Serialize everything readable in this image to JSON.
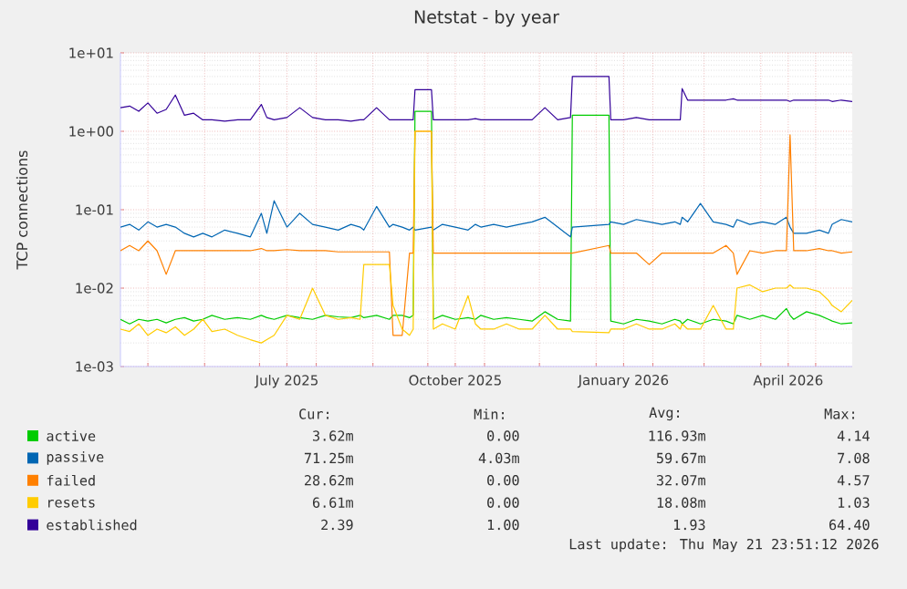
{
  "chart_data": {
    "type": "line",
    "title": "Netstat - by year",
    "ylabel": "TCP connections",
    "log": true,
    "grid": true,
    "legend": "bottom",
    "marker": "none",
    "line_style": "solid",
    "ylim": [
      0.001,
      10
    ],
    "yticks": [
      {
        "value": 0.001,
        "label": "1e-03"
      },
      {
        "value": 0.01,
        "label": "1e-02"
      },
      {
        "value": 0.1,
        "label": "1e-01"
      },
      {
        "value": 1,
        "label": "1e+00"
      },
      {
        "value": 10,
        "label": "1e+01"
      }
    ],
    "xlim": [
      "2025-04-16",
      "2026-05-21"
    ],
    "xticks": [
      {
        "value": "2025-05-01",
        "label": null
      },
      {
        "value": "2025-06-01",
        "label": null
      },
      {
        "value": "2025-07-01",
        "label": null
      },
      {
        "value": "2025-07-16",
        "label": "July 2025"
      },
      {
        "value": "2025-08-01",
        "label": null
      },
      {
        "value": "2025-09-01",
        "label": null
      },
      {
        "value": "2025-10-01",
        "label": null
      },
      {
        "value": "2025-10-16",
        "label": "October 2025"
      },
      {
        "value": "2025-11-01",
        "label": null
      },
      {
        "value": "2025-12-01",
        "label": null
      },
      {
        "value": "2026-01-01",
        "label": null
      },
      {
        "value": "2026-01-16",
        "label": "January 2026"
      },
      {
        "value": "2026-02-01",
        "label": null
      },
      {
        "value": "2026-03-01",
        "label": null
      },
      {
        "value": "2026-04-01",
        "label": null
      },
      {
        "value": "2026-04-16",
        "label": "April 2026"
      },
      {
        "value": "2026-05-01",
        "label": null
      }
    ],
    "x": [
      "2025-04-16",
      "2025-04-21",
      "2025-04-26",
      "2025-05-01",
      "2025-05-06",
      "2025-05-11",
      "2025-05-16",
      "2025-05-21",
      "2025-05-26",
      "2025-05-31",
      "2025-06-05",
      "2025-06-12",
      "2025-06-19",
      "2025-06-26",
      "2025-07-02",
      "2025-07-05",
      "2025-07-09",
      "2025-07-16",
      "2025-07-23",
      "2025-07-30",
      "2025-08-06",
      "2025-08-13",
      "2025-08-20",
      "2025-08-25",
      "2025-08-27",
      "2025-09-03",
      "2025-09-10",
      "2025-09-12",
      "2025-09-17",
      "2025-09-21",
      "2025-09-23",
      "2025-09-24",
      "2025-10-03",
      "2025-10-04",
      "2025-10-09",
      "2025-10-16",
      "2025-10-23",
      "2025-10-27",
      "2025-10-30",
      "2025-11-06",
      "2025-11-13",
      "2025-11-20",
      "2025-11-27",
      "2025-12-04",
      "2025-12-11",
      "2025-12-18",
      "2025-12-19",
      "2026-01-08",
      "2026-01-09",
      "2026-01-16",
      "2026-01-23",
      "2026-01-30",
      "2026-02-06",
      "2026-02-13",
      "2026-02-16",
      "2026-02-17",
      "2026-02-20",
      "2026-02-27",
      "2026-03-06",
      "2026-03-13",
      "2026-03-17",
      "2026-03-19",
      "2026-03-26",
      "2026-04-02",
      "2026-04-09",
      "2026-04-15",
      "2026-04-17",
      "2026-04-19",
      "2026-04-26",
      "2026-05-03",
      "2026-05-08",
      "2026-05-10",
      "2026-05-15",
      "2026-05-21"
    ],
    "series": [
      {
        "name": "active",
        "color": "#00cc00",
        "values": [
          0.004,
          0.0035,
          0.004,
          0.0038,
          0.004,
          0.0036,
          0.004,
          0.0042,
          0.0038,
          0.004,
          0.0045,
          0.004,
          0.0042,
          0.004,
          0.0045,
          0.0042,
          0.004,
          0.0045,
          0.0042,
          0.004,
          0.0045,
          0.0043,
          0.0042,
          0.0045,
          0.0042,
          0.0045,
          0.004,
          0.0045,
          0.0045,
          0.0042,
          0.0045,
          1.8,
          1.8,
          0.004,
          0.0045,
          0.004,
          0.0042,
          0.004,
          0.0045,
          0.004,
          0.0042,
          0.004,
          0.0038,
          0.005,
          0.004,
          0.0038,
          1.6,
          1.6,
          0.0038,
          0.0035,
          0.004,
          0.0038,
          0.0035,
          0.004,
          0.0038,
          0.0035,
          0.004,
          0.0035,
          0.004,
          0.0038,
          0.0035,
          0.0045,
          0.004,
          0.0045,
          0.004,
          0.0055,
          0.0045,
          0.004,
          0.005,
          0.0045,
          0.004,
          0.0038,
          0.0035,
          0.0036
        ]
      },
      {
        "name": "passive",
        "color": "#0066b3",
        "values": [
          0.06,
          0.065,
          0.055,
          0.07,
          0.06,
          0.065,
          0.06,
          0.05,
          0.045,
          0.05,
          0.045,
          0.055,
          0.05,
          0.045,
          0.09,
          0.05,
          0.13,
          0.06,
          0.09,
          0.065,
          0.06,
          0.055,
          0.065,
          0.06,
          0.055,
          0.11,
          0.06,
          0.065,
          0.06,
          0.055,
          0.06,
          0.055,
          0.06,
          0.055,
          0.065,
          0.06,
          0.055,
          0.065,
          0.06,
          0.065,
          0.06,
          0.065,
          0.07,
          0.08,
          0.06,
          0.045,
          0.06,
          0.065,
          0.07,
          0.065,
          0.075,
          0.07,
          0.065,
          0.07,
          0.065,
          0.08,
          0.07,
          0.12,
          0.07,
          0.065,
          0.06,
          0.075,
          0.065,
          0.07,
          0.065,
          0.08,
          0.06,
          0.05,
          0.05,
          0.055,
          0.05,
          0.065,
          0.075,
          0.07
        ]
      },
      {
        "name": "failed",
        "color": "#ff8000",
        "values": [
          0.03,
          0.035,
          0.03,
          0.04,
          0.03,
          0.015,
          0.03,
          0.03,
          0.03,
          0.03,
          0.03,
          0.03,
          0.03,
          0.03,
          0.032,
          0.03,
          0.03,
          0.031,
          0.03,
          0.03,
          0.03,
          0.029,
          0.029,
          0.029,
          0.029,
          0.029,
          0.029,
          0.0025,
          0.0025,
          0.028,
          0.028,
          1.0,
          1.0,
          0.028,
          0.028,
          0.028,
          0.028,
          0.028,
          0.028,
          0.028,
          0.028,
          0.028,
          0.028,
          0.028,
          0.028,
          0.028,
          0.028,
          0.035,
          0.028,
          0.028,
          0.028,
          0.02,
          0.028,
          0.028,
          0.028,
          0.028,
          0.028,
          0.028,
          0.028,
          0.035,
          0.028,
          0.015,
          0.03,
          0.028,
          0.03,
          0.03,
          0.9,
          0.03,
          0.03,
          0.032,
          0.03,
          0.03,
          0.028,
          0.029
        ]
      },
      {
        "name": "resets",
        "color": "#ffcc00",
        "values": [
          0.003,
          0.0028,
          0.0035,
          0.0025,
          0.003,
          0.0027,
          0.0032,
          0.0025,
          0.003,
          0.004,
          0.0028,
          0.003,
          0.0025,
          0.0022,
          0.002,
          0.0022,
          0.0025,
          0.0045,
          0.004,
          0.01,
          0.0045,
          0.004,
          0.0042,
          0.004,
          0.02,
          0.02,
          0.02,
          0.006,
          0.003,
          0.0025,
          0.003,
          1.0,
          1.0,
          0.003,
          0.0035,
          0.003,
          0.008,
          0.0035,
          0.003,
          0.003,
          0.0035,
          0.003,
          0.003,
          0.0045,
          0.003,
          0.003,
          0.0028,
          0.0027,
          0.003,
          0.003,
          0.0035,
          0.003,
          0.003,
          0.0035,
          0.003,
          0.0035,
          0.003,
          0.003,
          0.006,
          0.003,
          0.003,
          0.01,
          0.011,
          0.009,
          0.01,
          0.01,
          0.011,
          0.01,
          0.01,
          0.009,
          0.007,
          0.006,
          0.005,
          0.007
        ]
      },
      {
        "name": "established",
        "color": "#330099",
        "values": [
          2.0,
          2.1,
          1.8,
          2.3,
          1.7,
          1.9,
          2.9,
          1.6,
          1.7,
          1.4,
          1.4,
          1.35,
          1.4,
          1.4,
          2.2,
          1.5,
          1.4,
          1.5,
          2.0,
          1.5,
          1.4,
          1.4,
          1.35,
          1.4,
          1.4,
          2.0,
          1.4,
          1.4,
          1.4,
          1.4,
          1.4,
          3.4,
          3.4,
          1.4,
          1.4,
          1.4,
          1.4,
          1.45,
          1.4,
          1.4,
          1.4,
          1.4,
          1.4,
          2.0,
          1.4,
          1.5,
          5.0,
          5.0,
          1.4,
          1.4,
          1.5,
          1.4,
          1.4,
          1.4,
          1.4,
          3.5,
          2.5,
          2.5,
          2.5,
          2.5,
          2.6,
          2.5,
          2.5,
          2.5,
          2.5,
          2.5,
          2.4,
          2.5,
          2.5,
          2.5,
          2.5,
          2.4,
          2.5,
          2.4
        ]
      }
    ],
    "annotations": [
      "Cur:",
      "Min:",
      "Avg:",
      "Max:",
      "3.62m",
      "0.00",
      "116.93m",
      "4.14",
      "71.25m",
      "4.03m",
      "59.67m",
      "7.08",
      "28.62m",
      "0.00",
      "32.07m",
      "4.57",
      "6.61m",
      "0.00",
      "18.08m",
      "1.03",
      "2.39",
      "1.00",
      "1.93",
      "64.40",
      "Last update: Thu May 21 23:51:12 2026"
    ]
  }
}
